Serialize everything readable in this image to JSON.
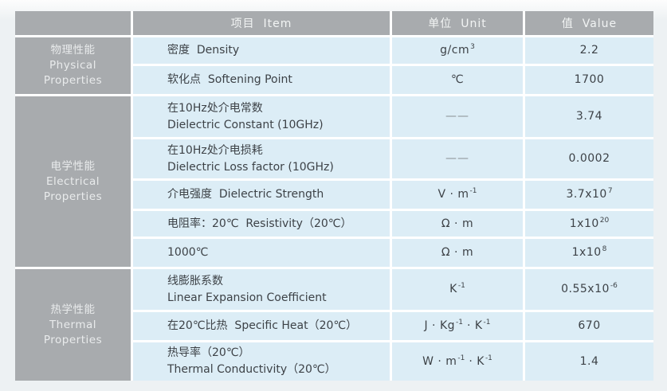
{
  "colors": {
    "page_background": "#edf1f3",
    "header_background": "#a8abae",
    "category_background": "#a8abae",
    "cell_background": "#dcedf6",
    "cell_gap": "#ffffff",
    "header_text": "#f2f4f4",
    "category_text": "#e9ebec",
    "cell_text": "#3d4247",
    "dash_text": "#878e93"
  },
  "header": {
    "corner": "",
    "item": "项目  Item",
    "unit": "单位  Unit",
    "value": "值  Value"
  },
  "categories": [
    {
      "label": "物理性能\nPhysical\nProperties",
      "rows_spanned": 2
    },
    {
      "label": "电学性能\nElectrical\nProperties",
      "rows_spanned": 5
    },
    {
      "label": "热学性能\nThermal\nProperties",
      "rows_spanned": 3
    }
  ],
  "rows": [
    {
      "item": "密度  Density",
      "unit": "g/cm^{3}",
      "value": "2.2"
    },
    {
      "item": "软化点  Softening Point",
      "unit": "℃",
      "value": "1700"
    },
    {
      "item": "在10Hz处介电常数\nDielectric Constant (10GHz)",
      "unit": "——",
      "value": "3.74"
    },
    {
      "item": "在10Hz处介电损耗\nDielectric Loss factor (10GHz)",
      "unit": "——",
      "value": "0.0002"
    },
    {
      "item": "介电强度  Dielectric Strength",
      "unit": "V · m^{-1}",
      "value": "3.7x10^{7}"
    },
    {
      "item": "电阻率：20℃  Resistivity（20℃）",
      "unit": "Ω · m",
      "value": "1x10^{20}"
    },
    {
      "item": "1000℃",
      "unit": "Ω · m",
      "value": "1x10^{8}"
    },
    {
      "item": "线膨胀系数\nLinear Expansion Coefficient",
      "unit": "K^{-1}",
      "value": "0.55x10^{-6}"
    },
    {
      "item": "在20℃比热  Specific Heat（20℃）",
      "unit": "J · Kg^{-1} · K^{-1}",
      "value": "670"
    },
    {
      "item": "热导率（20℃）\nThermal Conductivity（20℃）",
      "unit": "W · m^{-1} · K^{-1}",
      "value": "1.4"
    }
  ]
}
